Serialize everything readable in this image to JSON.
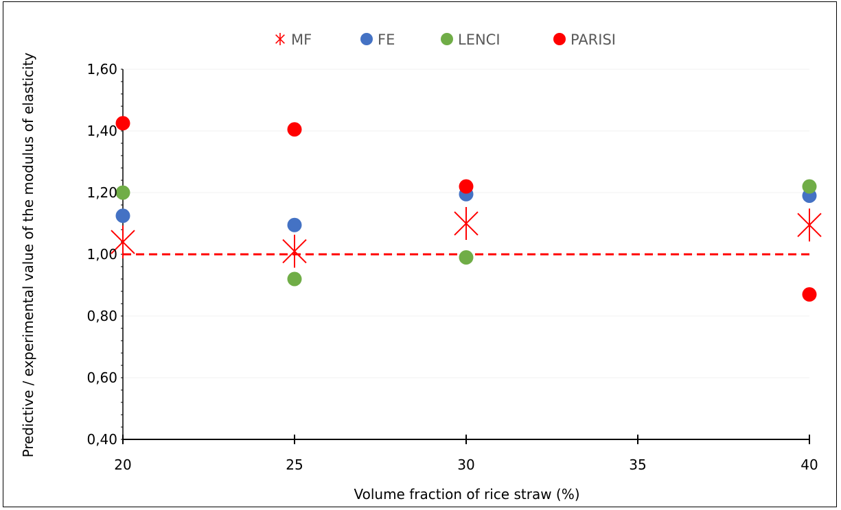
{
  "chart_data": {
    "type": "scatter",
    "xlabel": "Volume fraction of rice straw (%)",
    "ylabel": "Predictive / experimental value of the modulus of elasticity",
    "xlim": [
      20,
      40
    ],
    "ylim": [
      0.4,
      1.6
    ],
    "x_ticks": [
      "20",
      "25",
      "30",
      "35",
      "40"
    ],
    "y_ticks": [
      "0,40",
      "0,60",
      "0,80",
      "1,00",
      "1,20",
      "1,40",
      "1,60"
    ],
    "reference_line": {
      "y": 1.0,
      "style": "dashed",
      "color": "#ff0000"
    },
    "legend_position": "top",
    "series": [
      {
        "name": "MF",
        "marker": "star",
        "color": "#ff0000",
        "points": [
          [
            20,
            1.04
          ],
          [
            25,
            1.01
          ],
          [
            30,
            1.1
          ],
          [
            40,
            1.095
          ]
        ]
      },
      {
        "name": "FE",
        "marker": "circle",
        "color": "#4472c4",
        "points": [
          [
            20,
            1.125
          ],
          [
            25,
            1.095
          ],
          [
            30,
            1.195
          ],
          [
            40,
            1.19
          ]
        ]
      },
      {
        "name": "LENCI",
        "marker": "circle",
        "color": "#70ad47",
        "points": [
          [
            20,
            1.2
          ],
          [
            25,
            0.92
          ],
          [
            30,
            0.99
          ],
          [
            40,
            1.22
          ]
        ]
      },
      {
        "name": "PARISI",
        "marker": "circle",
        "color": "#ff0000",
        "points": [
          [
            20,
            1.425
          ],
          [
            25,
            1.405
          ],
          [
            30,
            1.22
          ],
          [
            40,
            0.87
          ]
        ]
      }
    ]
  }
}
